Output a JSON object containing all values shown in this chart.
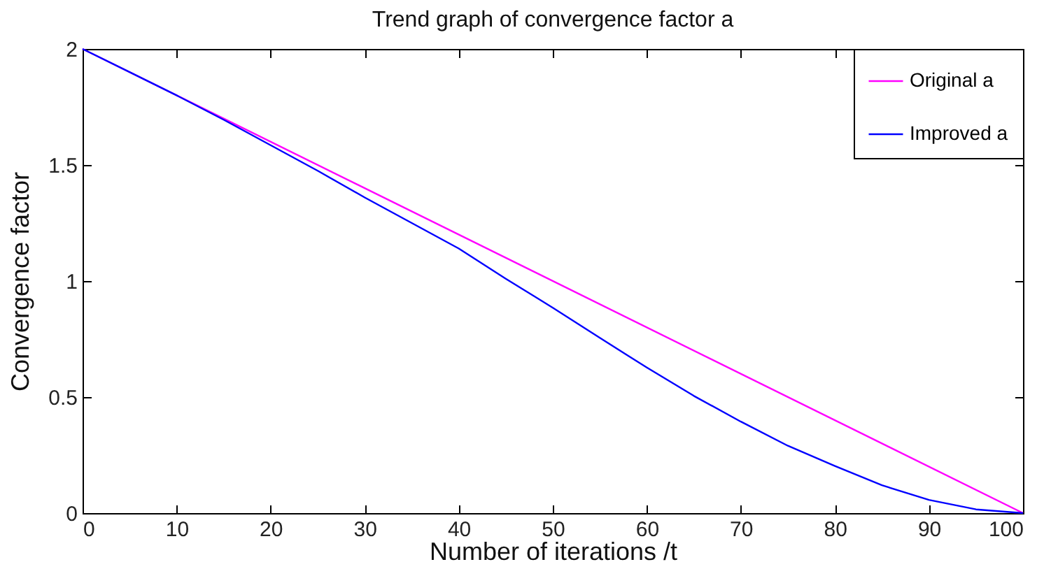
{
  "chart_data": {
    "type": "line",
    "title": "Trend graph of convergence factor a",
    "xlabel": "Number of iterations /t",
    "ylabel": "Convergence factor",
    "x": [
      0,
      5,
      10,
      15,
      20,
      25,
      30,
      35,
      40,
      45,
      50,
      55,
      60,
      65,
      70,
      75,
      80,
      85,
      90,
      95,
      100
    ],
    "series": [
      {
        "name": "Original a",
        "color": "#ff00ff",
        "x": [
          0,
          100
        ],
        "values": [
          2,
          0
        ]
      },
      {
        "name": "Improved a",
        "color": "#0000ff",
        "values": [
          2,
          1.9,
          1.8,
          1.695,
          1.585,
          1.475,
          1.36,
          1.25,
          1.14,
          1.01,
          0.885,
          0.755,
          0.627,
          0.505,
          0.394,
          0.29,
          0.203,
          0.12,
          0.057,
          0.016,
          0
        ]
      }
    ],
    "xlim": [
      0,
      100
    ],
    "xticks": [
      0,
      10,
      20,
      30,
      40,
      50,
      60,
      70,
      80,
      90,
      100
    ],
    "ylim": [
      0,
      2
    ],
    "yticks": [
      0,
      0.5,
      1,
      1.5,
      2
    ],
    "grid": false,
    "legend": "top right",
    "marker": "none",
    "line_style": "solid"
  }
}
